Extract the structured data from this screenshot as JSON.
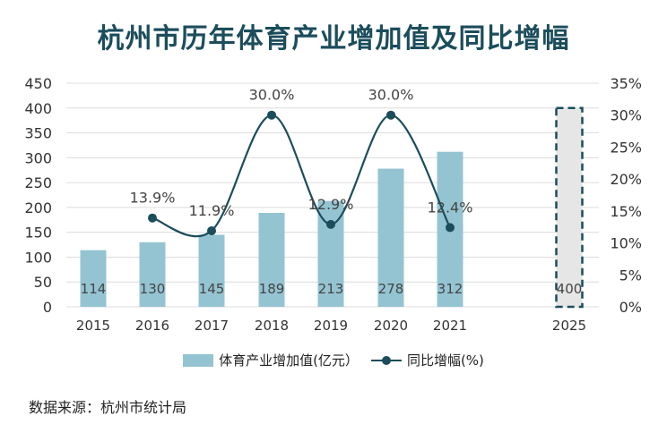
{
  "title": "杭州市历年体育产业增加值及同比增幅",
  "source": "数据来源：杭州市统计局",
  "colors": {
    "bar": "#94c4d2",
    "bar_projected": "#e6e6e6",
    "line": "#1b4d5c",
    "grid": "#dcdcdc",
    "title": "#1b4d5c"
  },
  "chart_data": {
    "type": "bar",
    "categories": [
      "2015",
      "2016",
      "2017",
      "2018",
      "2019",
      "2020",
      "2021",
      "2025"
    ],
    "series": [
      {
        "name": "体育产业增加值(亿元）",
        "type": "bar",
        "values": [
          114,
          130,
          145,
          189,
          213,
          278,
          312,
          400
        ],
        "labels": [
          "114",
          "130",
          "145",
          "189",
          "213",
          "278",
          "312",
          "400"
        ],
        "projected": [
          false,
          false,
          false,
          false,
          false,
          false,
          false,
          true
        ]
      },
      {
        "name": "同比增幅(%)",
        "type": "line",
        "axis": "right",
        "values": [
          null,
          13.9,
          11.9,
          30.0,
          12.9,
          30.0,
          12.4,
          null
        ],
        "labels": [
          "",
          "13.9%",
          "11.9%",
          "30.0%",
          "12.9%",
          "30.0%",
          "12.4%",
          ""
        ]
      }
    ],
    "y_left": {
      "ylim": [
        0,
        450
      ],
      "ticks": [
        "0",
        "50",
        "100",
        "150",
        "200",
        "250",
        "300",
        "350",
        "400",
        "450"
      ]
    },
    "y_right": {
      "ylim": [
        0,
        35
      ],
      "ticks": [
        "0%",
        "5%",
        "10%",
        "15%",
        "20%",
        "25%",
        "30%",
        "35%"
      ]
    },
    "grid": true,
    "legend_position": "bottom"
  }
}
